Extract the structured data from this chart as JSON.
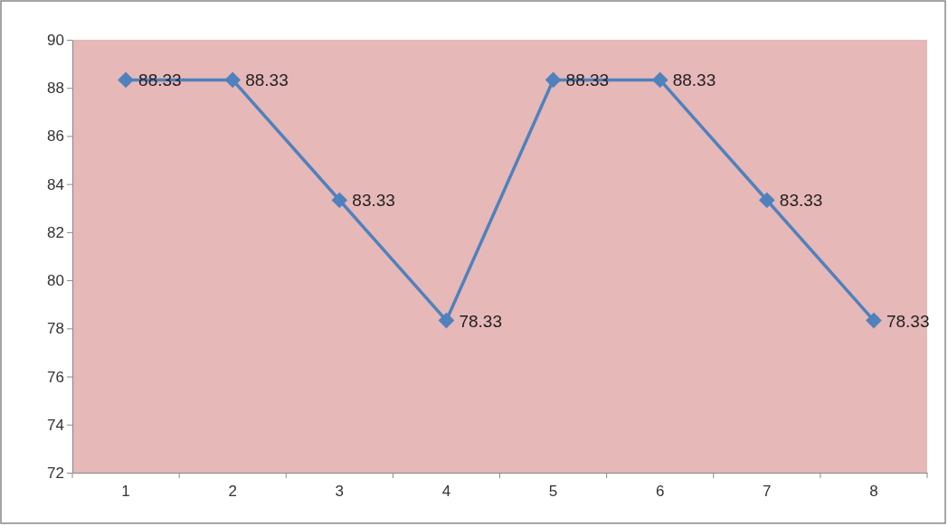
{
  "chart_data": {
    "type": "line",
    "categories": [
      "1",
      "2",
      "3",
      "4",
      "5",
      "6",
      "7",
      "8"
    ],
    "series": [
      {
        "color": "#4f81bd",
        "values": [
          88.33,
          88.33,
          83.33,
          78.33,
          88.33,
          88.33,
          83.33,
          78.33
        ]
      }
    ],
    "ylim": [
      72,
      90
    ],
    "yticks": [
      72,
      74,
      76,
      78,
      80,
      82,
      84,
      86,
      88,
      90
    ],
    "grid": false,
    "marker": "diamond",
    "line_style": "solid",
    "data_labels": true
  }
}
